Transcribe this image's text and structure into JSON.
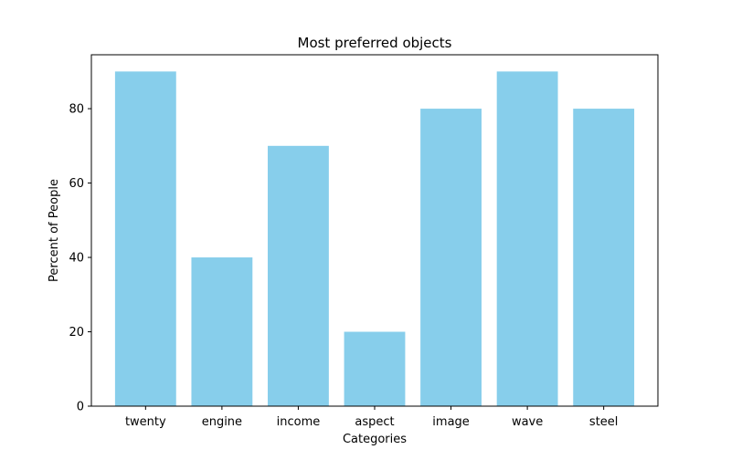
{
  "chart_data": {
    "type": "bar",
    "title": "Most preferred objects",
    "xlabel": "Categories",
    "ylabel": "Percent of People",
    "categories": [
      "twenty",
      "engine",
      "income",
      "aspect",
      "image",
      "wave",
      "steel"
    ],
    "values": [
      90,
      40,
      70,
      20,
      80,
      90,
      80
    ],
    "ylim": [
      0,
      94.5
    ],
    "yticks": [
      0,
      20,
      40,
      60,
      80
    ],
    "bar_color": "#87CEEB",
    "grid": false,
    "legend": "none"
  }
}
